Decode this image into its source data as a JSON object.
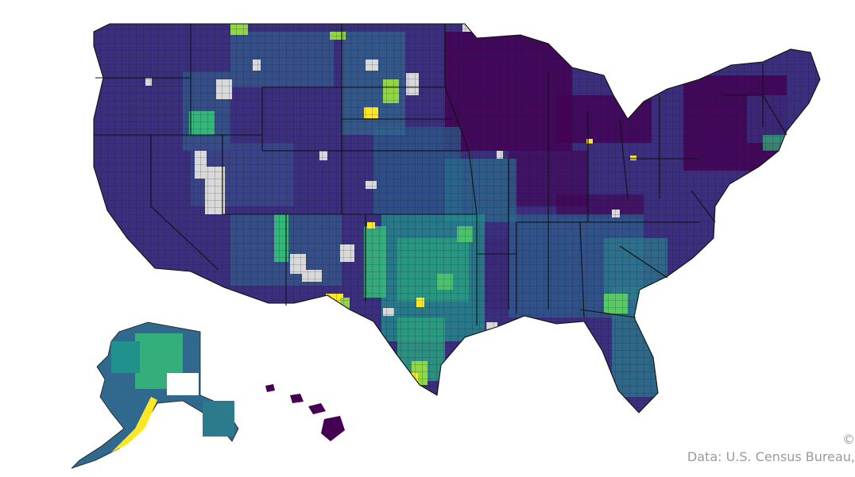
{
  "map": {
    "colors": {
      "dark_purple": "#440154",
      "indigo": "#3b2f7d",
      "blue": "#31688e",
      "teal": "#21918c",
      "green": "#35b779",
      "yellow_green": "#90d743",
      "yellow": "#fde725",
      "no_data": "#d9d9d9",
      "border": "#1a1a1a"
    },
    "regions": [
      "contiguous-us",
      "alaska",
      "hawaii"
    ]
  },
  "footer": {
    "copyright_symbol": "©",
    "source": "Data: U.S. Census Bureau,"
  }
}
